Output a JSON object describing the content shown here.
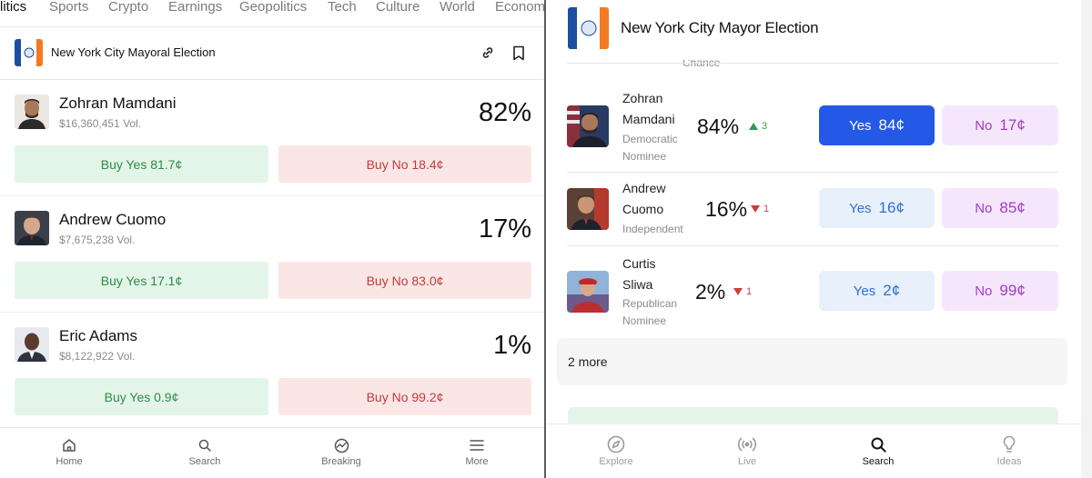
{
  "left": {
    "categories": [
      {
        "label": "litics",
        "active": true
      },
      {
        "label": "Sports",
        "active": false
      },
      {
        "label": "Crypto",
        "active": false
      },
      {
        "label": "Earnings",
        "active": false
      },
      {
        "label": "Geopolitics",
        "active": false
      },
      {
        "label": "Tech",
        "active": false
      },
      {
        "label": "Culture",
        "active": false
      },
      {
        "label": "World",
        "active": false
      },
      {
        "label": "Economy",
        "active": false
      }
    ],
    "market_title": "New York City Mayoral Election",
    "candidates": [
      {
        "name": "Zohran Mamdani",
        "volume": "$16,360,451 Vol.",
        "chance": "82%",
        "buy_yes": "Buy Yes 81.7¢",
        "buy_no": "Buy No 18.4¢"
      },
      {
        "name": "Andrew Cuomo",
        "volume": "$7,675,238 Vol.",
        "chance": "17%",
        "buy_yes": "Buy Yes 17.1¢",
        "buy_no": "Buy No 83.0¢"
      },
      {
        "name": "Eric Adams",
        "volume": "$8,122,922 Vol.",
        "chance": "1%",
        "buy_yes": "Buy Yes 0.9¢",
        "buy_no": "Buy No 99.2¢"
      }
    ],
    "nav": [
      {
        "label": "Home",
        "icon": "home-icon"
      },
      {
        "label": "Search",
        "icon": "search-icon"
      },
      {
        "label": "Breaking",
        "icon": "breaking-icon"
      },
      {
        "label": "More",
        "icon": "menu-icon"
      }
    ]
  },
  "right": {
    "title": "New York City Mayor Election",
    "chance_header": "Chance",
    "candidates": [
      {
        "first": "Zohran",
        "last": "Mamdani",
        "party1": "Democratic",
        "party2": "Nominee",
        "chance": "84%",
        "change": "3",
        "direction": "up",
        "yes_label": "Yes",
        "yes_price": "84¢",
        "no_label": "No",
        "no_price": "17¢"
      },
      {
        "first": "Andrew",
        "last": "Cuomo",
        "party1": "Independent",
        "party2": "",
        "chance": "16%",
        "change": "1",
        "direction": "down",
        "yes_label": "Yes",
        "yes_price": "16¢",
        "no_label": "No",
        "no_price": "85¢"
      },
      {
        "first": "Curtis",
        "last": "Sliwa",
        "party1": "Republican",
        "party2": "Nominee",
        "chance": "2%",
        "change": "1",
        "direction": "down",
        "yes_label": "Yes",
        "yes_price": "2¢",
        "no_label": "No",
        "no_price": "99¢"
      }
    ],
    "more_label": "2 more",
    "nav": [
      {
        "label": "Explore",
        "icon": "compass-icon"
      },
      {
        "label": "Live",
        "icon": "broadcast-icon"
      },
      {
        "label": "Search",
        "icon": "search-icon"
      },
      {
        "label": "Ideas",
        "icon": "lightbulb-icon"
      }
    ]
  },
  "colors": {
    "yes_active": "#2458e6",
    "yes_bg": "#e8f0fb",
    "no_bg": "#f6e6fb",
    "buy_yes_bg": "#e3f5e8",
    "buy_no_bg": "#fbe6e6",
    "up": "#2e9a52",
    "down": "#d13b3b"
  }
}
